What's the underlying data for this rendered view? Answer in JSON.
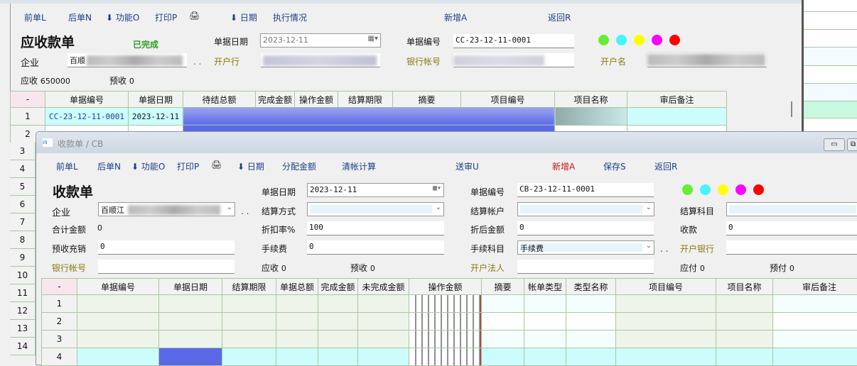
{
  "back": {
    "toolbar": [
      "前单L",
      "后单N",
      "功能O",
      "打印P",
      "日期",
      "执行情况",
      "新增A",
      "返回R"
    ],
    "title": "应收款单",
    "status": "已完成",
    "date_label": "单据日期",
    "date_value": "2023-12-11",
    "no_label": "单据编号",
    "no_value": "CC-23-12-11-0001",
    "company_label": "企业",
    "company_value": "百顺",
    "bank_label": "开户行",
    "account_label": "银行帐号",
    "acct_name_label": "开户名",
    "receivable_label": "应收",
    "receivable_value": "650000",
    "advance_label": "预收",
    "advance_value": "0",
    "grid_headers": [
      "-",
      "单据编号",
      "单据日期",
      "待结总额",
      "完成金额",
      "操作金额",
      "结算期限",
      "摘要",
      "项目编号",
      "项目名称",
      "审后备注"
    ],
    "row_numbers": [
      "1",
      "2",
      "3",
      "4",
      "5",
      "6",
      "7",
      "8",
      "9",
      "10",
      "11",
      "12",
      "13",
      "14"
    ],
    "row1": {
      "no": "CC-23-12-11-0001",
      "date": "2023-12-11"
    }
  },
  "colors": [
    "#66ee33",
    "#44f4ff",
    "#ffff00",
    "#ff00ff",
    "#ff0000"
  ],
  "front": {
    "window_title": "收款单 / CB",
    "toolbar": [
      "前单L",
      "后单N",
      "功能O",
      "打印P",
      "日期",
      "分配金额",
      "清帐计算",
      "送审U",
      "新增A",
      "保存S",
      "返回R"
    ],
    "title": "收款单",
    "fields": {
      "date_label": "单据日期",
      "date_value": "2023-12-11",
      "no_label": "单据编号",
      "no_value": "CB-23-12-11-0001",
      "company_label": "企业",
      "company_value": "百顺江",
      "settle_method_label": "结算方式",
      "settle_account_label": "结算帐户",
      "settle_subject_label": "结算科目",
      "total_label": "合计金额",
      "total_value": "0",
      "discount_label": "折扣率%",
      "discount_value": "100",
      "after_discount_label": "折后金额",
      "after_discount_value": "0",
      "receipt_label": "收款",
      "receipt_value": "0",
      "advance_offset_label": "预收充销",
      "advance_offset_value": "0",
      "fee_label": "手续费",
      "fee_value": "0",
      "fee_subject_label": "手续科目",
      "fee_subject_value": "手续费",
      "bank_label": "开户银行",
      "account_label": "银行帐号",
      "legal_label": "开户法人",
      "receivable_label": "应收",
      "receivable_value": "0",
      "advance_label": "预收",
      "advance_value": "0",
      "payable_label": "应付",
      "payable_value": "0",
      "prepay_label": "预付",
      "prepay_value": "0"
    },
    "grid_headers": [
      "-",
      "单据编号",
      "单据日期",
      "结算期限",
      "单据总额",
      "完成金额",
      "未完成金额",
      "操作金额",
      "摘要",
      "帐单类型",
      "类型名称",
      "项目编号",
      "项目名称",
      "审后备注"
    ],
    "row_numbers": [
      "1",
      "2",
      "3",
      "4"
    ]
  }
}
